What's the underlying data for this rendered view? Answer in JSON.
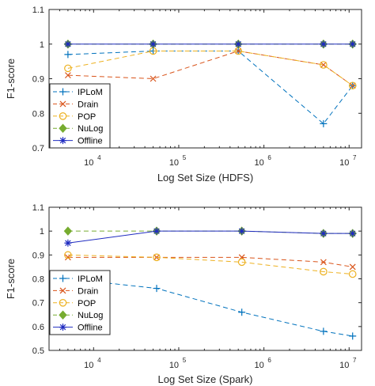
{
  "chart_data": [
    {
      "type": "line",
      "xscale": "log",
      "xlabel": "Log Set Size (HDFS)",
      "ylabel": "F1-score",
      "xlim": [
        3000,
        14000000
      ],
      "ylim": [
        0.7,
        1.1
      ],
      "xticks": [
        {
          "value": 10000,
          "base": "10",
          "exp": "4"
        },
        {
          "value": 100000,
          "base": "10",
          "exp": "5"
        },
        {
          "value": 1000000,
          "base": "10",
          "exp": "6"
        },
        {
          "value": 10000000,
          "base": "10",
          "exp": "7"
        }
      ],
      "yticks": [
        "0.7",
        "0.8",
        "0.9",
        "1",
        "1.1"
      ],
      "x": [
        5000,
        50000,
        500000,
        5000000,
        11000000
      ],
      "legend_position": "bottom-left",
      "series": [
        {
          "name": "IPLoM",
          "color": "#0072BD",
          "dash": "6,4",
          "marker": "plus",
          "values": [
            0.97,
            0.98,
            0.98,
            0.77,
            0.88
          ]
        },
        {
          "name": "Drain",
          "color": "#D95319",
          "dash": "6,4",
          "marker": "x",
          "values": [
            0.91,
            0.9,
            0.98,
            0.94,
            0.88
          ]
        },
        {
          "name": "POP",
          "color": "#EDB120",
          "dash": "6,4",
          "marker": "circle",
          "values": [
            0.93,
            0.98,
            0.98,
            0.94,
            0.88
          ]
        },
        {
          "name": "NuLog",
          "color": "#77AC30",
          "dash": "6,4",
          "marker": "diamond",
          "values": [
            1.0,
            1.0,
            1.0,
            1.0,
            1.0
          ]
        },
        {
          "name": "Offline",
          "color": "#1F2BC0",
          "dash": "",
          "marker": "star",
          "values": [
            1.0,
            1.0,
            1.0,
            1.0,
            1.0
          ]
        }
      ]
    },
    {
      "type": "line",
      "xscale": "log",
      "xlabel": "Log Set Size (Spark)",
      "ylabel": "F1-score",
      "xlim": [
        3000,
        14000000
      ],
      "ylim": [
        0.5,
        1.1
      ],
      "xticks": [
        {
          "value": 10000,
          "base": "10",
          "exp": "4"
        },
        {
          "value": 100000,
          "base": "10",
          "exp": "5"
        },
        {
          "value": 1000000,
          "base": "10",
          "exp": "6"
        },
        {
          "value": 10000000,
          "base": "10",
          "exp": "7"
        }
      ],
      "yticks": [
        "0.5",
        "0.6",
        "0.7",
        "0.8",
        "0.9",
        "1",
        "1.1"
      ],
      "x": [
        5000,
        55000,
        550000,
        5000000,
        11000000
      ],
      "legend_position": "bottom-left",
      "series": [
        {
          "name": "IPLoM",
          "color": "#0072BD",
          "dash": "6,4",
          "marker": "plus",
          "values": [
            0.8,
            0.76,
            0.66,
            0.58,
            0.56
          ]
        },
        {
          "name": "Drain",
          "color": "#D95319",
          "dash": "6,4",
          "marker": "x",
          "values": [
            0.89,
            0.89,
            0.89,
            0.87,
            0.85
          ]
        },
        {
          "name": "POP",
          "color": "#EDB120",
          "dash": "6,4",
          "marker": "circle",
          "values": [
            0.9,
            0.89,
            0.87,
            0.83,
            0.82
          ]
        },
        {
          "name": "NuLog",
          "color": "#77AC30",
          "dash": "6,4",
          "marker": "diamond",
          "values": [
            1.0,
            1.0,
            1.0,
            0.99,
            0.99
          ]
        },
        {
          "name": "Offline",
          "color": "#1F2BC0",
          "dash": "",
          "marker": "star",
          "values": [
            0.95,
            1.0,
            1.0,
            0.99,
            0.99
          ]
        }
      ]
    }
  ]
}
